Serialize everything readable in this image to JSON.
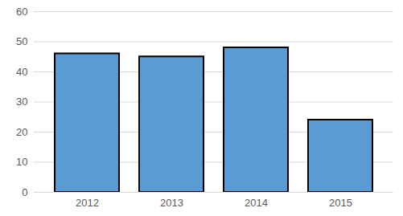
{
  "chart_data": {
    "type": "bar",
    "categories": [
      "2012",
      "2013",
      "2014",
      "2015"
    ],
    "values": [
      46,
      45,
      48,
      24
    ],
    "color": "#5b9bd5",
    "ylim": [
      0,
      60
    ],
    "yticks": [
      0,
      10,
      20,
      30,
      40,
      50,
      60
    ],
    "grid": true
  }
}
